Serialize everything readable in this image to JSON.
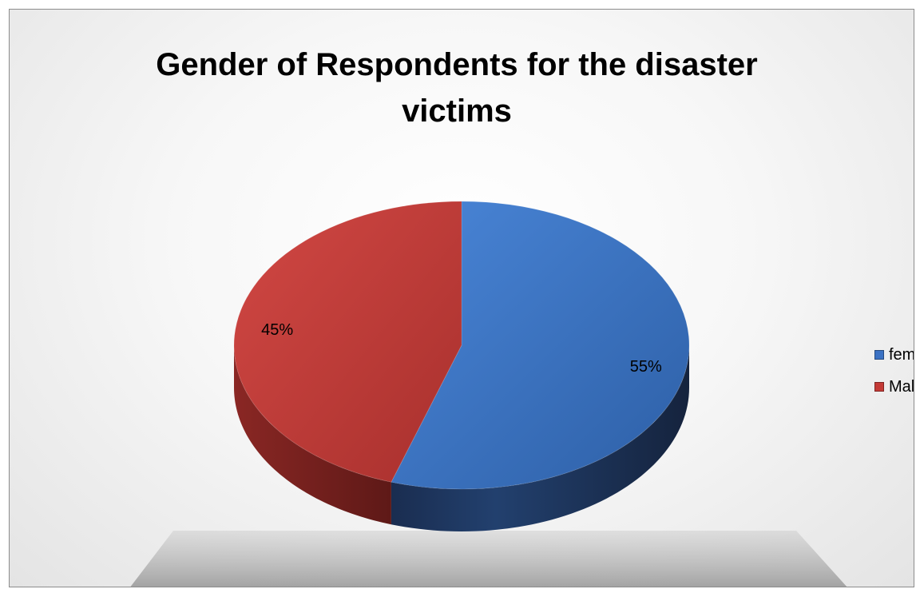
{
  "chart_data": {
    "type": "pie",
    "title": "Gender of Respondents for the disaster victims",
    "categories": [
      "female",
      "Male"
    ],
    "values": [
      55,
      45
    ],
    "data_labels": [
      "55%",
      "45%"
    ],
    "colors": [
      "#3b72c4",
      "#c43a36"
    ],
    "style": "3d",
    "legend": {
      "position": "right",
      "entries": [
        "female",
        "Male"
      ]
    }
  }
}
